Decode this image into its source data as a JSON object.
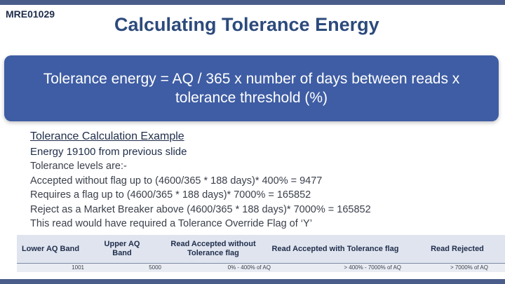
{
  "slide": {
    "doc_id": "MRE01029",
    "title": "Calculating Tolerance Energy"
  },
  "formula": {
    "line1": "Tolerance energy = AQ / 365 x number of days between reads x",
    "line2": "tolerance threshold (%)"
  },
  "example": {
    "heading": "Tolerance Calculation Example",
    "subheading": "Energy 19100 from previous slide",
    "lines": [
      "Tolerance levels are:-",
      "Accepted without flag up to (4600/365 * 188 days)* 400% = 9477",
      "Requires a flag up to (4600/365 * 188 days)* 7000% = 165852",
      "Reject as a Market Breaker above (4600/365 * 188 days)* 7000% = 165852",
      "This read would have required a Tolerance Override Flag of ‘Y’"
    ]
  },
  "table": {
    "headers": {
      "lower_aq": "Lower AQ Band",
      "upper_aq": "Upper AQ Band",
      "accepted": "Read Accepted without Tolerance flag",
      "with_flag": "Read Accepted with Tolerance flag",
      "rejected": "Read Rejected"
    },
    "row": {
      "lower_aq": "1001",
      "upper_aq": "5000",
      "accepted": "0% - 400% of AQ",
      "with_flag": "> 400% - 7000% of AQ",
      "rejected": "> 7000% of AQ"
    }
  },
  "colors": {
    "accent_bar": "#4a5d8a",
    "formula_bg": "#3f5da4",
    "title": "#2c4a7c"
  }
}
